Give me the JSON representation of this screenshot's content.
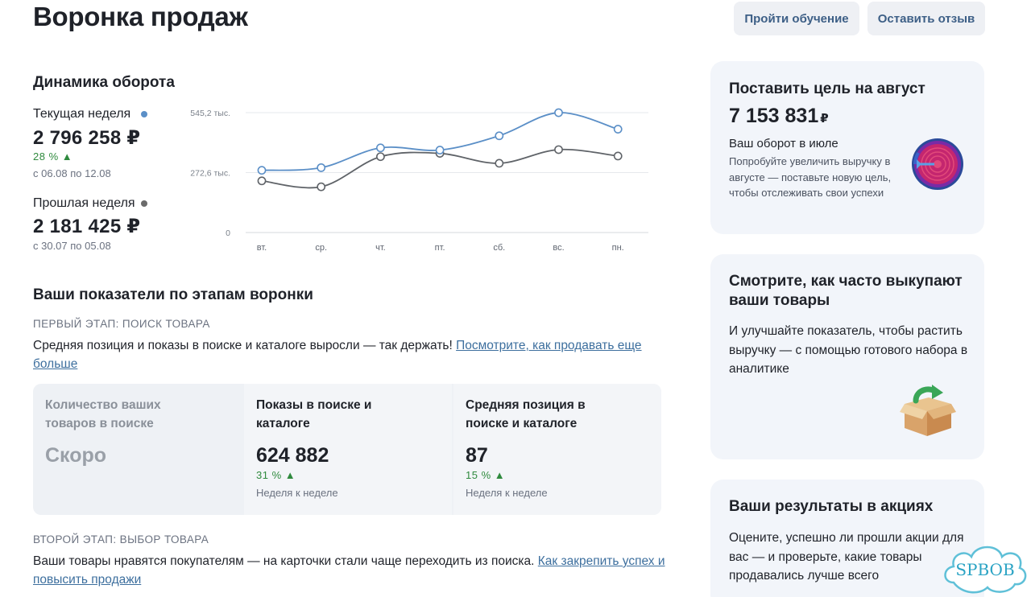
{
  "header": {
    "title": "Воронка продаж",
    "learn_button": "Пройти обучение",
    "feedback_button": "Оставить отзыв"
  },
  "turnover": {
    "title": "Динамика оборота",
    "current": {
      "label": "Текущая неделя",
      "amount": "2 796 258 ₽",
      "delta": "28 % ▲",
      "period": "с 06.08 по 12.08",
      "color": "#5b8fc7"
    },
    "previous": {
      "label": "Прошлая неделя",
      "amount": "2 181 425 ₽",
      "period": "с 30.07 по 05.08",
      "color": "#6b6b6b"
    }
  },
  "chart_data": {
    "type": "line",
    "categories": [
      "вт.",
      "ср.",
      "чт.",
      "пт.",
      "сб.",
      "вс.",
      "пн."
    ],
    "y_ticks": [
      "545,2 тыс.",
      "272,6 тыс.",
      "0"
    ],
    "ylim": [
      0,
      545200
    ],
    "grid": true,
    "series": [
      {
        "name": "Текущая неделя",
        "color": "#5b8fc7",
        "values": [
          283000,
          295000,
          385000,
          375000,
          440000,
          545000,
          470000
        ]
      },
      {
        "name": "Прошлая неделя",
        "color": "#5f6368",
        "values": [
          235000,
          208000,
          345000,
          360000,
          315000,
          377000,
          348000
        ]
      }
    ]
  },
  "funnel": {
    "title": "Ваши показатели по этапам воронки",
    "stage1": {
      "caption": "ПЕРВЫЙ ЭТАП: ПОИСК ТОВАРА",
      "text": "Средняя позиция и показы в поиске и каталоге выросли — так держать! ",
      "link": "Посмотрите, как продавать еще больше"
    },
    "metrics": [
      {
        "title": "Количество ваших товаров в поиске",
        "value": "Скоро"
      },
      {
        "title": "Показы в поиске и каталоге",
        "value": "624 882",
        "delta": "31 % ▲",
        "note": "Неделя к неделе"
      },
      {
        "title": "Средняя позиция в поиске и каталоге",
        "value": "87",
        "delta": "15 % ▲",
        "note": "Неделя к неделе"
      }
    ],
    "stage2": {
      "caption": "ВТОРОЙ ЭТАП: ВЫБОР ТОВАРА",
      "text": "Ваши товары нравятся покупателям — на карточки стали чаще переходить из поиска. ",
      "link": "Как закрепить успех и повысить продажи"
    }
  },
  "cards": {
    "goal": {
      "title": "Поставить цель на август",
      "amount": "7 153 831",
      "currency": "₽",
      "subtitle": "Ваш оборот в июле",
      "text": "Попробуйте увеличить выручку в августе — поставьте новую цель, чтобы отслеживать свои успехи",
      "icon": "target-icon"
    },
    "buyout": {
      "title": "Смотрите, как часто выкупают ваши товары",
      "text": "И улучшайте показатель, чтобы растить выручку — с помощью готового набора в аналитике",
      "icon": "box-icon"
    },
    "promo": {
      "title": "Ваши результаты в акциях",
      "text": "Оцените, успешно ли прошли акции для вас — и проверьте, какие товары продавались лучше всего"
    }
  },
  "watermark": {
    "text": "SPBOB"
  }
}
